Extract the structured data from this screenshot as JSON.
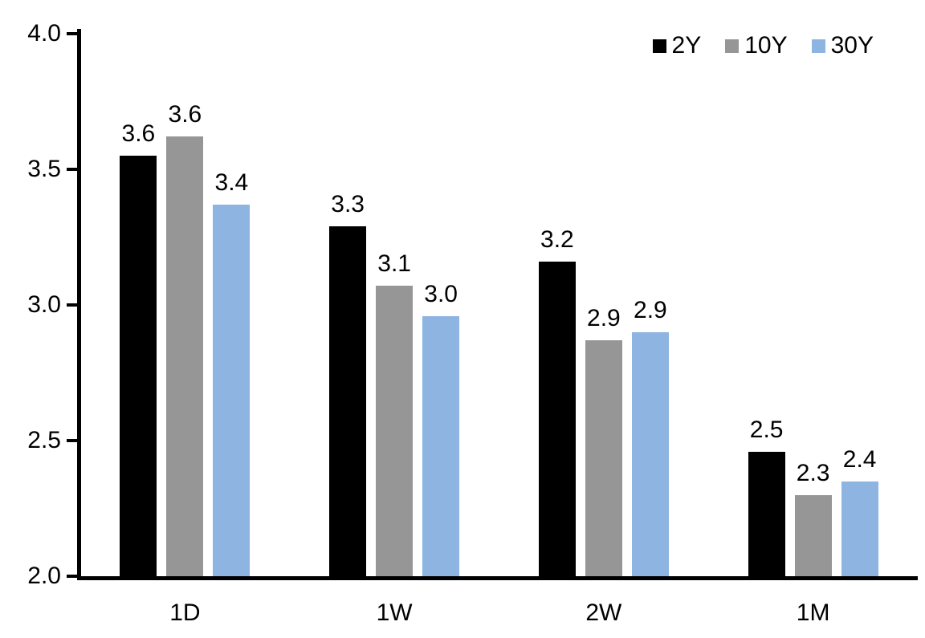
{
  "chart_data": {
    "type": "bar",
    "title": "",
    "categories": [
      "1D",
      "1W",
      "2W",
      "1M"
    ],
    "series": [
      {
        "name": "2Y",
        "color": "#000000",
        "values": [
          3.55,
          3.29,
          3.16,
          2.46
        ],
        "labels": [
          "3.6",
          "3.3",
          "3.2",
          "2.5"
        ]
      },
      {
        "name": "10Y",
        "color": "#969696",
        "values": [
          3.62,
          3.07,
          2.87,
          2.3
        ],
        "labels": [
          "3.6",
          "3.1",
          "2.9",
          "2.3"
        ]
      },
      {
        "name": "30Y",
        "color": "#8EB4E2",
        "values": [
          3.37,
          2.96,
          2.9,
          2.35
        ],
        "labels": [
          "3.4",
          "3.0",
          "2.9",
          "2.4"
        ]
      }
    ],
    "y_axis": {
      "min": 2.0,
      "max": 4.0,
      "tick_step": 0.5,
      "ticks": [
        "4.0",
        "3.5",
        "3.0",
        "2.5",
        "2.0"
      ]
    },
    "x_axis": {
      "label": ""
    },
    "ylabel": "",
    "xlabel": "",
    "legend_position": "top-right",
    "grid": false,
    "data_labels_shown": true
  }
}
